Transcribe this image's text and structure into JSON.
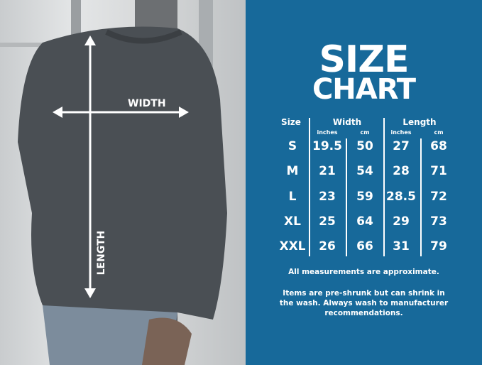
{
  "photo": {
    "width_label": "WIDTH",
    "length_label": "LENGTH"
  },
  "title": {
    "line1": "SIZE",
    "line2": "CHART"
  },
  "table": {
    "size_header": "Size",
    "width_header": "Width",
    "length_header": "Length",
    "sub": [
      "inches",
      "cm",
      "inches",
      "cm"
    ],
    "rows": [
      {
        "size": "S",
        "w_in": "19.5",
        "w_cm": "50",
        "l_in": "27",
        "l_cm": "68"
      },
      {
        "size": "M",
        "w_in": "21",
        "w_cm": "54",
        "l_in": "28",
        "l_cm": "71"
      },
      {
        "size": "L",
        "w_in": "23",
        "w_cm": "59",
        "l_in": "28.5",
        "l_cm": "72"
      },
      {
        "size": "XL",
        "w_in": "25",
        "w_cm": "64",
        "l_in": "29",
        "l_cm": "73"
      },
      {
        "size": "XXL",
        "w_in": "26",
        "w_cm": "66",
        "l_in": "31",
        "l_cm": "79"
      }
    ]
  },
  "notes": {
    "line1": "All measurements are approximate.",
    "line2": "Items are pre-shrunk but can shrink in",
    "line3": "the wash. Always wash to manufacturer",
    "line4": "recommendations."
  },
  "colors": {
    "panel": "#17699a",
    "text": "#ffffff"
  }
}
